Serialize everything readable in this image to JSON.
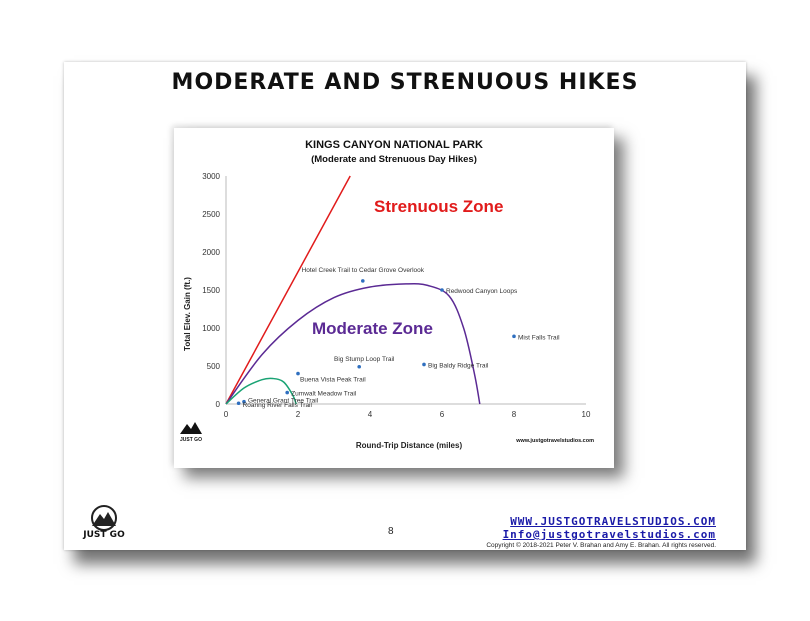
{
  "slide": {
    "title": "MODERATE AND STRENUOUS HIKES",
    "page_number": "8",
    "website": "WWW.JUSTGOTRAVELSTUDIOS.COM",
    "email": "Info@justgotravelstudios.com",
    "copyright": "Copyright © 2018-2021 Peter V. Brahan and Amy E. Brahan.  All rights reserved.",
    "logo_text": "JUST GO"
  },
  "colors": {
    "strenuous": "#e11b1b",
    "moderate": "#5b2a94",
    "easy": "#1aa374",
    "points": "#2f6fbf"
  },
  "chart_data": {
    "type": "scatter",
    "title": "KINGS CANYON NATIONAL PARK",
    "subtitle": "(Moderate and Strenuous Day Hikes)",
    "xlabel": "Round-Trip Distance (miles)",
    "ylabel": "Total Elev. Gain (ft.)",
    "xlim": [
      0,
      10
    ],
    "ylim": [
      0,
      3000
    ],
    "xticks": [
      0,
      2,
      4,
      6,
      8,
      10
    ],
    "yticks": [
      0,
      500,
      1000,
      1500,
      2000,
      2500,
      3000
    ],
    "zone_labels": {
      "strenuous": "Strenuous Zone",
      "moderate": "Moderate Zone"
    },
    "watermark": "www.justgotravelstudios.com",
    "points": [
      {
        "label": "Hotel Creek Trail to Cedar Grove Overlook",
        "x": 3.8,
        "y": 1620
      },
      {
        "label": "Redwood Canyon Loops",
        "x": 6.0,
        "y": 1500
      },
      {
        "label": "Mist Falls Trail",
        "x": 8.0,
        "y": 890
      },
      {
        "label": "Big Stump Loop Trail",
        "x": 3.7,
        "y": 490
      },
      {
        "label": "Big Baldy Ridge Trail",
        "x": 5.5,
        "y": 520
      },
      {
        "label": "Buena Vista Peak Trail",
        "x": 2.0,
        "y": 400
      },
      {
        "label": "Zumwalt Meadow Trail",
        "x": 1.7,
        "y": 150
      },
      {
        "label": "General Grant Tree Trail",
        "x": 0.5,
        "y": 30
      },
      {
        "label": "Roaring River Falls Trail",
        "x": 0.35,
        "y": 10
      }
    ],
    "strenuous_line": [
      [
        0,
        0
      ],
      [
        3.45,
        3000
      ]
    ],
    "moderate_curve": [
      [
        0,
        0
      ],
      [
        1,
        650
      ],
      [
        2,
        1100
      ],
      [
        3,
        1400
      ],
      [
        4,
        1540
      ],
      [
        5,
        1580
      ],
      [
        5.6,
        1560
      ],
      [
        6.2,
        1420
      ],
      [
        6.6,
        1000
      ],
      [
        6.9,
        400
      ],
      [
        7.05,
        0
      ]
    ],
    "easy_curve": [
      [
        0,
        0
      ],
      [
        0.5,
        210
      ],
      [
        1,
        320
      ],
      [
        1.3,
        335
      ],
      [
        1.6,
        290
      ],
      [
        1.85,
        120
      ],
      [
        1.95,
        0
      ]
    ]
  }
}
